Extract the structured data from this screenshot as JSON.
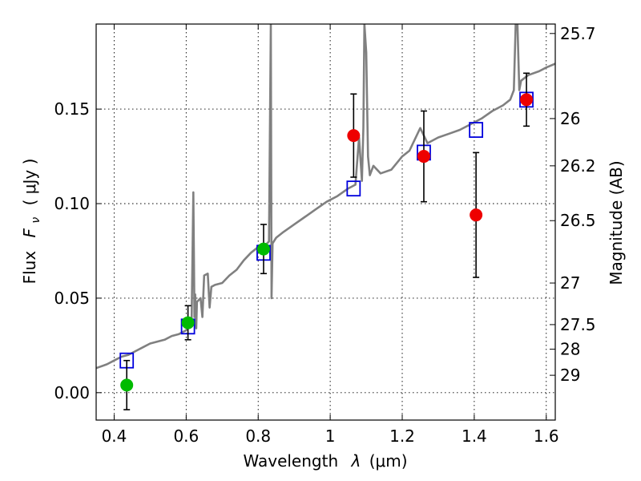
{
  "chart_data": {
    "type": "scatter",
    "xlabel_text": "Wavelength",
    "xlabel_symbol": "λ",
    "xlabel_unit": "(μm)",
    "ylabel_text": "Flux",
    "ylabel_symbol": "F",
    "ylabel_subscript": "ν",
    "ylabel_unit": "( μJy )",
    "y2label": "Magnitude (AB)",
    "xlim": [
      0.35,
      1.625
    ],
    "ylim": [
      -0.0145,
      0.195
    ],
    "grid": true,
    "x_ticks": [
      {
        "value": 0.4,
        "label": "0.4"
      },
      {
        "value": 0.6,
        "label": "0.6"
      },
      {
        "value": 0.8,
        "label": "0.8"
      },
      {
        "value": 1.0,
        "label": "1"
      },
      {
        "value": 1.2,
        "label": "1.2"
      },
      {
        "value": 1.4,
        "label": "1.4"
      },
      {
        "value": 1.6,
        "label": "1.6"
      }
    ],
    "y_ticks": [
      {
        "value": 0.0,
        "label": "0.00"
      },
      {
        "value": 0.05,
        "label": "0.05"
      },
      {
        "value": 0.1,
        "label": "0.10"
      },
      {
        "value": 0.15,
        "label": "0.15"
      }
    ],
    "y2_ticks": [
      {
        "flux": 0.19,
        "label": "25.7"
      },
      {
        "flux": 0.145,
        "label": "26"
      },
      {
        "flux": 0.12,
        "label": "26.2"
      },
      {
        "flux": 0.091,
        "label": "26.5"
      },
      {
        "flux": 0.058,
        "label": "27"
      },
      {
        "flux": 0.036,
        "label": "27.5"
      },
      {
        "flux": 0.023,
        "label": "28"
      },
      {
        "flux": 0.0092,
        "label": "29"
      }
    ],
    "model_spectrum": {
      "color": "#808080",
      "x": [
        0.35,
        0.38,
        0.4,
        0.42,
        0.44,
        0.46,
        0.48,
        0.5,
        0.52,
        0.54,
        0.56,
        0.58,
        0.6,
        0.615,
        0.62,
        0.623,
        0.625,
        0.628,
        0.63,
        0.64,
        0.645,
        0.65,
        0.66,
        0.665,
        0.67,
        0.68,
        0.7,
        0.72,
        0.74,
        0.76,
        0.78,
        0.8,
        0.82,
        0.83,
        0.835,
        0.837,
        0.84,
        0.85,
        0.87,
        0.9,
        0.93,
        0.96,
        0.99,
        1.02,
        1.05,
        1.07,
        1.08,
        1.088,
        1.092,
        1.095,
        1.1,
        1.105,
        1.11,
        1.12,
        1.14,
        1.17,
        1.2,
        1.22,
        1.25,
        1.27,
        1.3,
        1.33,
        1.36,
        1.39,
        1.42,
        1.45,
        1.48,
        1.5,
        1.51,
        1.515,
        1.52,
        1.525,
        1.53,
        1.55,
        1.58,
        1.6,
        1.625
      ],
      "y": [
        0.013,
        0.015,
        0.017,
        0.019,
        0.02,
        0.022,
        0.024,
        0.026,
        0.027,
        0.028,
        0.03,
        0.031,
        0.033,
        0.036,
        0.106,
        0.04,
        0.052,
        0.034,
        0.048,
        0.05,
        0.04,
        0.062,
        0.063,
        0.045,
        0.056,
        0.057,
        0.058,
        0.062,
        0.065,
        0.07,
        0.074,
        0.077,
        0.078,
        0.08,
        0.195,
        0.05,
        0.079,
        0.082,
        0.085,
        0.089,
        0.093,
        0.097,
        0.101,
        0.104,
        0.108,
        0.11,
        0.135,
        0.112,
        0.14,
        0.195,
        0.18,
        0.125,
        0.115,
        0.12,
        0.116,
        0.118,
        0.125,
        0.128,
        0.14,
        0.132,
        0.135,
        0.137,
        0.139,
        0.142,
        0.145,
        0.149,
        0.152,
        0.155,
        0.16,
        0.195,
        0.195,
        0.16,
        0.165,
        0.168,
        0.17,
        0.172,
        0.174
      ]
    },
    "series": [
      {
        "marker": "open-square",
        "color": "#0000dd",
        "x": [
          0.435,
          0.605,
          0.815,
          1.065,
          1.26,
          1.405,
          1.545
        ],
        "y": [
          0.017,
          0.035,
          0.074,
          0.108,
          0.127,
          0.139,
          0.155
        ]
      },
      {
        "marker": "filled-circle",
        "color": "#00bb00",
        "x": [
          0.435,
          0.605,
          0.815
        ],
        "y": [
          0.004,
          0.037,
          0.076
        ],
        "err": [
          0.013,
          0.009,
          0.013
        ]
      },
      {
        "marker": "filled-circle",
        "color": "#ee0000",
        "x": [
          1.065,
          1.26,
          1.405,
          1.545
        ],
        "y": [
          0.136,
          0.125,
          0.094,
          0.155
        ],
        "err": [
          0.022,
          0.024,
          0.033,
          0.014
        ]
      }
    ]
  }
}
